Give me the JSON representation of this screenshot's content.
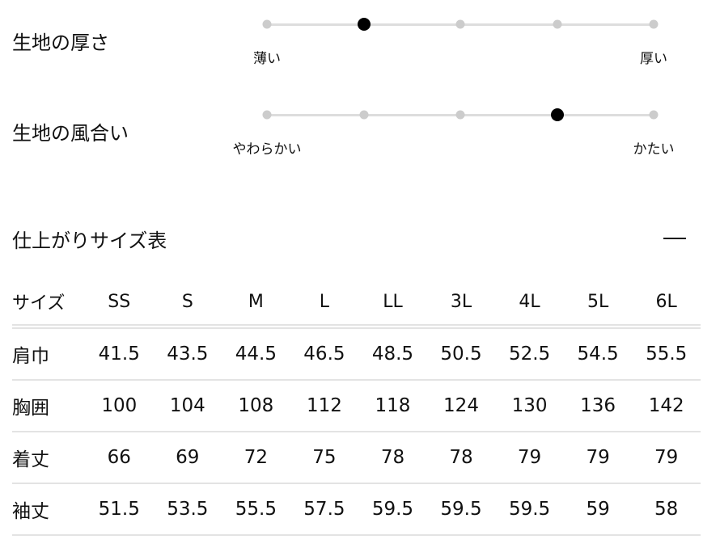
{
  "ratings": [
    {
      "label": "生地の厚さ",
      "min_label": "薄い",
      "max_label": "厚い",
      "steps": 5,
      "selected": 2
    },
    {
      "label": "生地の風合い",
      "min_label": "やわらかい",
      "max_label": "かたい",
      "steps": 5,
      "selected": 4
    }
  ],
  "size_table": {
    "title": "仕上がりサイズ表",
    "collapse_icon": "minus-icon",
    "headers": [
      "サイズ",
      "SS",
      "S",
      "M",
      "L",
      "LL",
      "3L",
      "4L",
      "5L",
      "6L"
    ],
    "rows": [
      [
        "肩巾",
        "41.5",
        "43.5",
        "44.5",
        "46.5",
        "48.5",
        "50.5",
        "52.5",
        "54.5",
        "55.5"
      ],
      [
        "胸囲",
        "100",
        "104",
        "108",
        "112",
        "118",
        "124",
        "130",
        "136",
        "142"
      ],
      [
        "着丈",
        "66",
        "69",
        "72",
        "75",
        "78",
        "78",
        "79",
        "79",
        "79"
      ],
      [
        "袖丈",
        "51.5",
        "53.5",
        "55.5",
        "57.5",
        "59.5",
        "59.5",
        "59.5",
        "59",
        "58"
      ]
    ]
  }
}
